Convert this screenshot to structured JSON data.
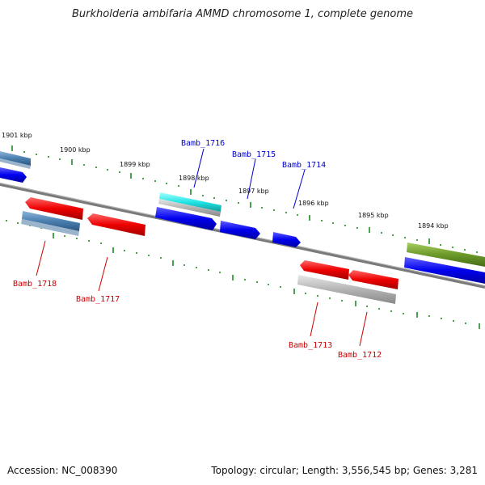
{
  "title": "Burkholderia ambifaria AMMD chromosome 1, complete genome",
  "footer": {
    "accession": "Accession: NC_008390",
    "topology": "Topology: circular; Length: 3,556,545 bp; Genes: 3,281"
  },
  "scale_labels": [
    "1901 kbp",
    "1900 kbp",
    "1899 kbp",
    "1898 kbp",
    "1897 kbp",
    "1896 kbp",
    "1895 kbp",
    "1894 kbp"
  ],
  "gene_labels_top": [
    "Bamb_1716",
    "Bamb_1715",
    "Bamb_1714"
  ],
  "gene_labels_bottom": [
    "Bamb_1718",
    "Bamb_1717",
    "Bamb_1713",
    "Bamb_1712"
  ],
  "colors": {
    "forward": "#0000ee",
    "reverse": "#ee0000",
    "steelblue": "#4a7fb0",
    "cyan": "#22e5e5",
    "gray": "#b0b0b0",
    "olive": "#6b9a2a",
    "tick": "#1f8a1f",
    "axis": "#808080"
  }
}
